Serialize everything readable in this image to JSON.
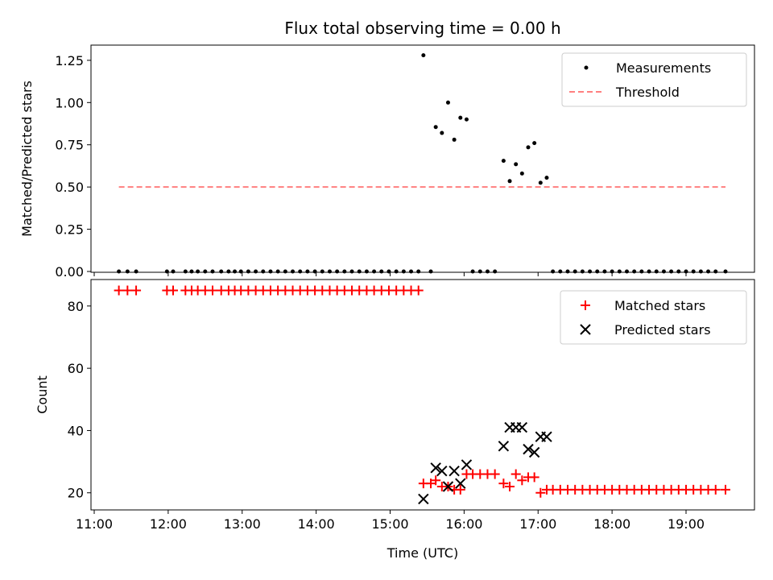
{
  "title": "Flux total observing time = 0.00 h",
  "xlabel": "Time (UTC)",
  "x_ticks": [
    "11:00",
    "12:00",
    "13:00",
    "14:00",
    "15:00",
    "16:00",
    "17:00",
    "18:00",
    "19:00"
  ],
  "colors": {
    "measurements": "#000000",
    "threshold": "#ff7f7f",
    "matched": "#ff0000",
    "predicted": "#000000"
  },
  "chart_data": [
    {
      "type": "scatter",
      "ylabel": "Matched/Predicted stars",
      "ylim": [
        0,
        1.34
      ],
      "y_ticks": [
        "0.00",
        "0.25",
        "0.50",
        "0.75",
        "1.00",
        "1.25"
      ],
      "legend_position": "top-right",
      "series": [
        {
          "name": "Measurements",
          "type": "scatter",
          "points": [
            [
              "11:20",
              0
            ],
            [
              "11:27",
              0
            ],
            [
              "11:34",
              0
            ],
            [
              "11:59",
              0
            ],
            [
              "12:04",
              0
            ],
            [
              "12:14",
              0
            ],
            [
              "12:19",
              0
            ],
            [
              "12:24",
              0
            ],
            [
              "12:30",
              0
            ],
            [
              "12:36",
              0
            ],
            [
              "12:43",
              0
            ],
            [
              "12:49",
              0
            ],
            [
              "12:54",
              0
            ],
            [
              "12:59",
              0
            ],
            [
              "13:05",
              0
            ],
            [
              "13:11",
              0
            ],
            [
              "13:17",
              0
            ],
            [
              "13:23",
              0
            ],
            [
              "13:29",
              0
            ],
            [
              "13:35",
              0
            ],
            [
              "13:41",
              0
            ],
            [
              "13:47",
              0
            ],
            [
              "13:53",
              0
            ],
            [
              "13:59",
              0
            ],
            [
              "14:05",
              0
            ],
            [
              "14:11",
              0
            ],
            [
              "14:17",
              0
            ],
            [
              "14:23",
              0
            ],
            [
              "14:29",
              0
            ],
            [
              "14:35",
              0
            ],
            [
              "14:41",
              0
            ],
            [
              "14:47",
              0
            ],
            [
              "14:53",
              0
            ],
            [
              "14:59",
              0
            ],
            [
              "15:05",
              0
            ],
            [
              "15:11",
              0
            ],
            [
              "15:17",
              0
            ],
            [
              "15:23",
              0
            ],
            [
              "15:33",
              0
            ],
            [
              "15:27",
              1.28
            ],
            [
              "15:37",
              0.855
            ],
            [
              "15:42",
              0.82
            ],
            [
              "15:47",
              1.0
            ],
            [
              "15:52",
              0.78
            ],
            [
              "15:57",
              0.91
            ],
            [
              "16:02",
              0.9
            ],
            [
              "16:07",
              0
            ],
            [
              "16:13",
              0
            ],
            [
              "16:19",
              0
            ],
            [
              "16:25",
              0
            ],
            [
              "16:32",
              0.655
            ],
            [
              "16:37",
              0.535
            ],
            [
              "16:42",
              0.635
            ],
            [
              "16:47",
              0.58
            ],
            [
              "16:52",
              0.735
            ],
            [
              "16:57",
              0.76
            ],
            [
              "17:02",
              0.525
            ],
            [
              "17:07",
              0.555
            ],
            [
              "17:12",
              0
            ],
            [
              "17:18",
              0
            ],
            [
              "17:24",
              0
            ],
            [
              "17:30",
              0
            ],
            [
              "17:36",
              0
            ],
            [
              "17:42",
              0
            ],
            [
              "17:48",
              0
            ],
            [
              "17:54",
              0
            ],
            [
              "18:00",
              0
            ],
            [
              "18:06",
              0
            ],
            [
              "18:12",
              0
            ],
            [
              "18:18",
              0
            ],
            [
              "18:24",
              0
            ],
            [
              "18:30",
              0
            ],
            [
              "18:36",
              0
            ],
            [
              "18:42",
              0
            ],
            [
              "18:48",
              0
            ],
            [
              "18:54",
              0
            ],
            [
              "19:00",
              0
            ],
            [
              "19:06",
              0
            ],
            [
              "19:12",
              0
            ],
            [
              "19:18",
              0
            ],
            [
              "19:24",
              0
            ],
            [
              "19:32",
              0
            ]
          ]
        },
        {
          "name": "Threshold",
          "type": "line",
          "dashed": true,
          "points": [
            [
              "11:20",
              0.5
            ],
            [
              "19:32",
              0.5
            ]
          ]
        }
      ]
    },
    {
      "type": "scatter",
      "ylabel": "Count",
      "ylim": [
        14.5,
        88.5
      ],
      "y_ticks": [
        "20",
        "40",
        "60",
        "80"
      ],
      "legend_position": "top-right",
      "series": [
        {
          "name": "Matched stars",
          "marker": "plus",
          "points": [
            [
              "11:20",
              85
            ],
            [
              "11:27",
              85
            ],
            [
              "11:34",
              85
            ],
            [
              "11:59",
              85
            ],
            [
              "12:04",
              85
            ],
            [
              "12:14",
              85
            ],
            [
              "12:19",
              85
            ],
            [
              "12:24",
              85
            ],
            [
              "12:30",
              85
            ],
            [
              "12:36",
              85
            ],
            [
              "12:43",
              85
            ],
            [
              "12:49",
              85
            ],
            [
              "12:54",
              85
            ],
            [
              "12:59",
              85
            ],
            [
              "13:05",
              85
            ],
            [
              "13:11",
              85
            ],
            [
              "13:17",
              85
            ],
            [
              "13:23",
              85
            ],
            [
              "13:29",
              85
            ],
            [
              "13:35",
              85
            ],
            [
              "13:41",
              85
            ],
            [
              "13:47",
              85
            ],
            [
              "13:53",
              85
            ],
            [
              "13:59",
              85
            ],
            [
              "14:05",
              85
            ],
            [
              "14:11",
              85
            ],
            [
              "14:17",
              85
            ],
            [
              "14:23",
              85
            ],
            [
              "14:29",
              85
            ],
            [
              "14:35",
              85
            ],
            [
              "14:41",
              85
            ],
            [
              "14:47",
              85
            ],
            [
              "14:53",
              85
            ],
            [
              "14:59",
              85
            ],
            [
              "15:05",
              85
            ],
            [
              "15:11",
              85
            ],
            [
              "15:17",
              85
            ],
            [
              "15:23",
              85
            ],
            [
              "15:27",
              23
            ],
            [
              "15:33",
              23
            ],
            [
              "15:37",
              24
            ],
            [
              "15:42",
              22
            ],
            [
              "15:47",
              22
            ],
            [
              "15:52",
              21
            ],
            [
              "15:57",
              21
            ],
            [
              "16:02",
              26
            ],
            [
              "16:07",
              26
            ],
            [
              "16:13",
              26
            ],
            [
              "16:19",
              26
            ],
            [
              "16:25",
              26
            ],
            [
              "16:32",
              23
            ],
            [
              "16:37",
              22
            ],
            [
              "16:42",
              26
            ],
            [
              "16:47",
              24
            ],
            [
              "16:52",
              25
            ],
            [
              "16:57",
              25
            ],
            [
              "17:02",
              20
            ],
            [
              "17:07",
              21
            ],
            [
              "17:12",
              21
            ],
            [
              "17:18",
              21
            ],
            [
              "17:24",
              21
            ],
            [
              "17:30",
              21
            ],
            [
              "17:36",
              21
            ],
            [
              "17:42",
              21
            ],
            [
              "17:48",
              21
            ],
            [
              "17:54",
              21
            ],
            [
              "18:00",
              21
            ],
            [
              "18:06",
              21
            ],
            [
              "18:12",
              21
            ],
            [
              "18:18",
              21
            ],
            [
              "18:24",
              21
            ],
            [
              "18:30",
              21
            ],
            [
              "18:36",
              21
            ],
            [
              "18:42",
              21
            ],
            [
              "18:48",
              21
            ],
            [
              "18:54",
              21
            ],
            [
              "19:00",
              21
            ],
            [
              "19:06",
              21
            ],
            [
              "19:12",
              21
            ],
            [
              "19:18",
              21
            ],
            [
              "19:24",
              21
            ],
            [
              "19:32",
              21
            ]
          ]
        },
        {
          "name": "Predicted stars",
          "marker": "x",
          "points": [
            [
              "15:27",
              18
            ],
            [
              "15:37",
              28
            ],
            [
              "15:42",
              27
            ],
            [
              "15:47",
              22
            ],
            [
              "15:52",
              27
            ],
            [
              "15:57",
              23
            ],
            [
              "16:02",
              29
            ],
            [
              "16:32",
              35
            ],
            [
              "16:37",
              41
            ],
            [
              "16:42",
              41
            ],
            [
              "16:47",
              41
            ],
            [
              "16:52",
              34
            ],
            [
              "16:57",
              33
            ],
            [
              "17:02",
              38
            ],
            [
              "17:07",
              38
            ]
          ]
        }
      ]
    }
  ]
}
